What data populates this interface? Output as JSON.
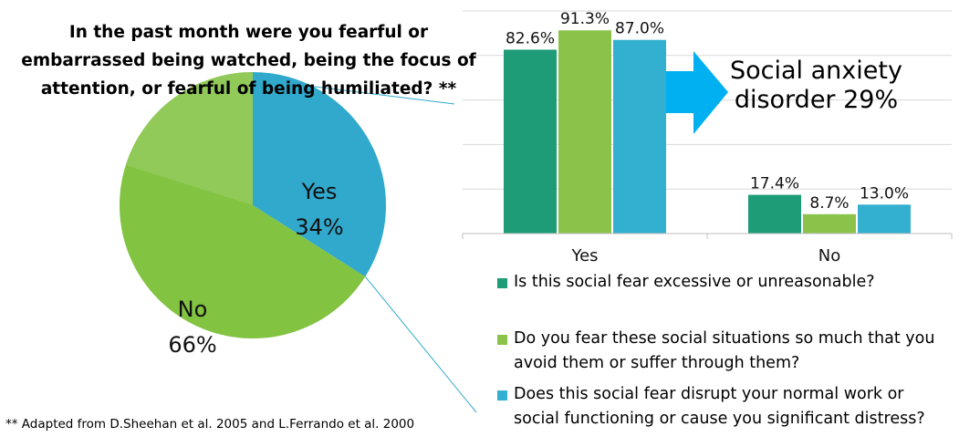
{
  "chart_data": [
    {
      "type": "pie",
      "title": "In the past month were you fearful or embarrassed being watched, being the focus of attention, or fearful of being humiliated? **",
      "title_lines": [
        "In the past month were you fearful or",
        "embarrassed being watched, being the focus of",
        "attention, or fearful of being humiliated? **"
      ],
      "slices": [
        {
          "label": "Yes",
          "value": 34,
          "value_label": "34%",
          "color": "#31a9cc"
        },
        {
          "label": "No",
          "value": 66,
          "value_label": "66%",
          "color": "#82c341"
        }
      ]
    },
    {
      "type": "bar",
      "categories": [
        "Yes",
        "No"
      ],
      "ylim": [
        0,
        100
      ],
      "grid": true,
      "legend_position": "bottom",
      "series": [
        {
          "name": "Is this social fear excessive or unreasonable?",
          "values": [
            82.6,
            17.4
          ],
          "value_labels": [
            "82.6%",
            "17.4%"
          ],
          "color": "#1e9b77"
        },
        {
          "name": "Do you fear these social situations so much that you avoid them or suffer through them?",
          "values": [
            91.3,
            8.7
          ],
          "value_labels": [
            "91.3%",
            "8.7%"
          ],
          "color": "#8bc34a"
        },
        {
          "name": "Does this social fear disrupt your normal work or social functioning or cause you significant distress?",
          "values": [
            87.0,
            13.0
          ],
          "value_labels": [
            "87.0%",
            "13.0%"
          ],
          "color": "#33afd0"
        }
      ]
    }
  ],
  "legend_lines": [
    [
      "Is this social fear excessive or unreasonable?"
    ],
    [
      "Do you fear these social situations so much that you",
      "avoid them or suffer through them?"
    ],
    [
      "Does this social fear disrupt your normal work or",
      "social functioning or cause you significant distress?"
    ]
  ],
  "callout": {
    "lines": [
      "Social anxiety",
      "disorder 29%"
    ],
    "arrow_color": "#00b0f0"
  },
  "footnote": "** Adapted from D.Sheehan et al.  2005 and L.Ferrando et al. 2000"
}
